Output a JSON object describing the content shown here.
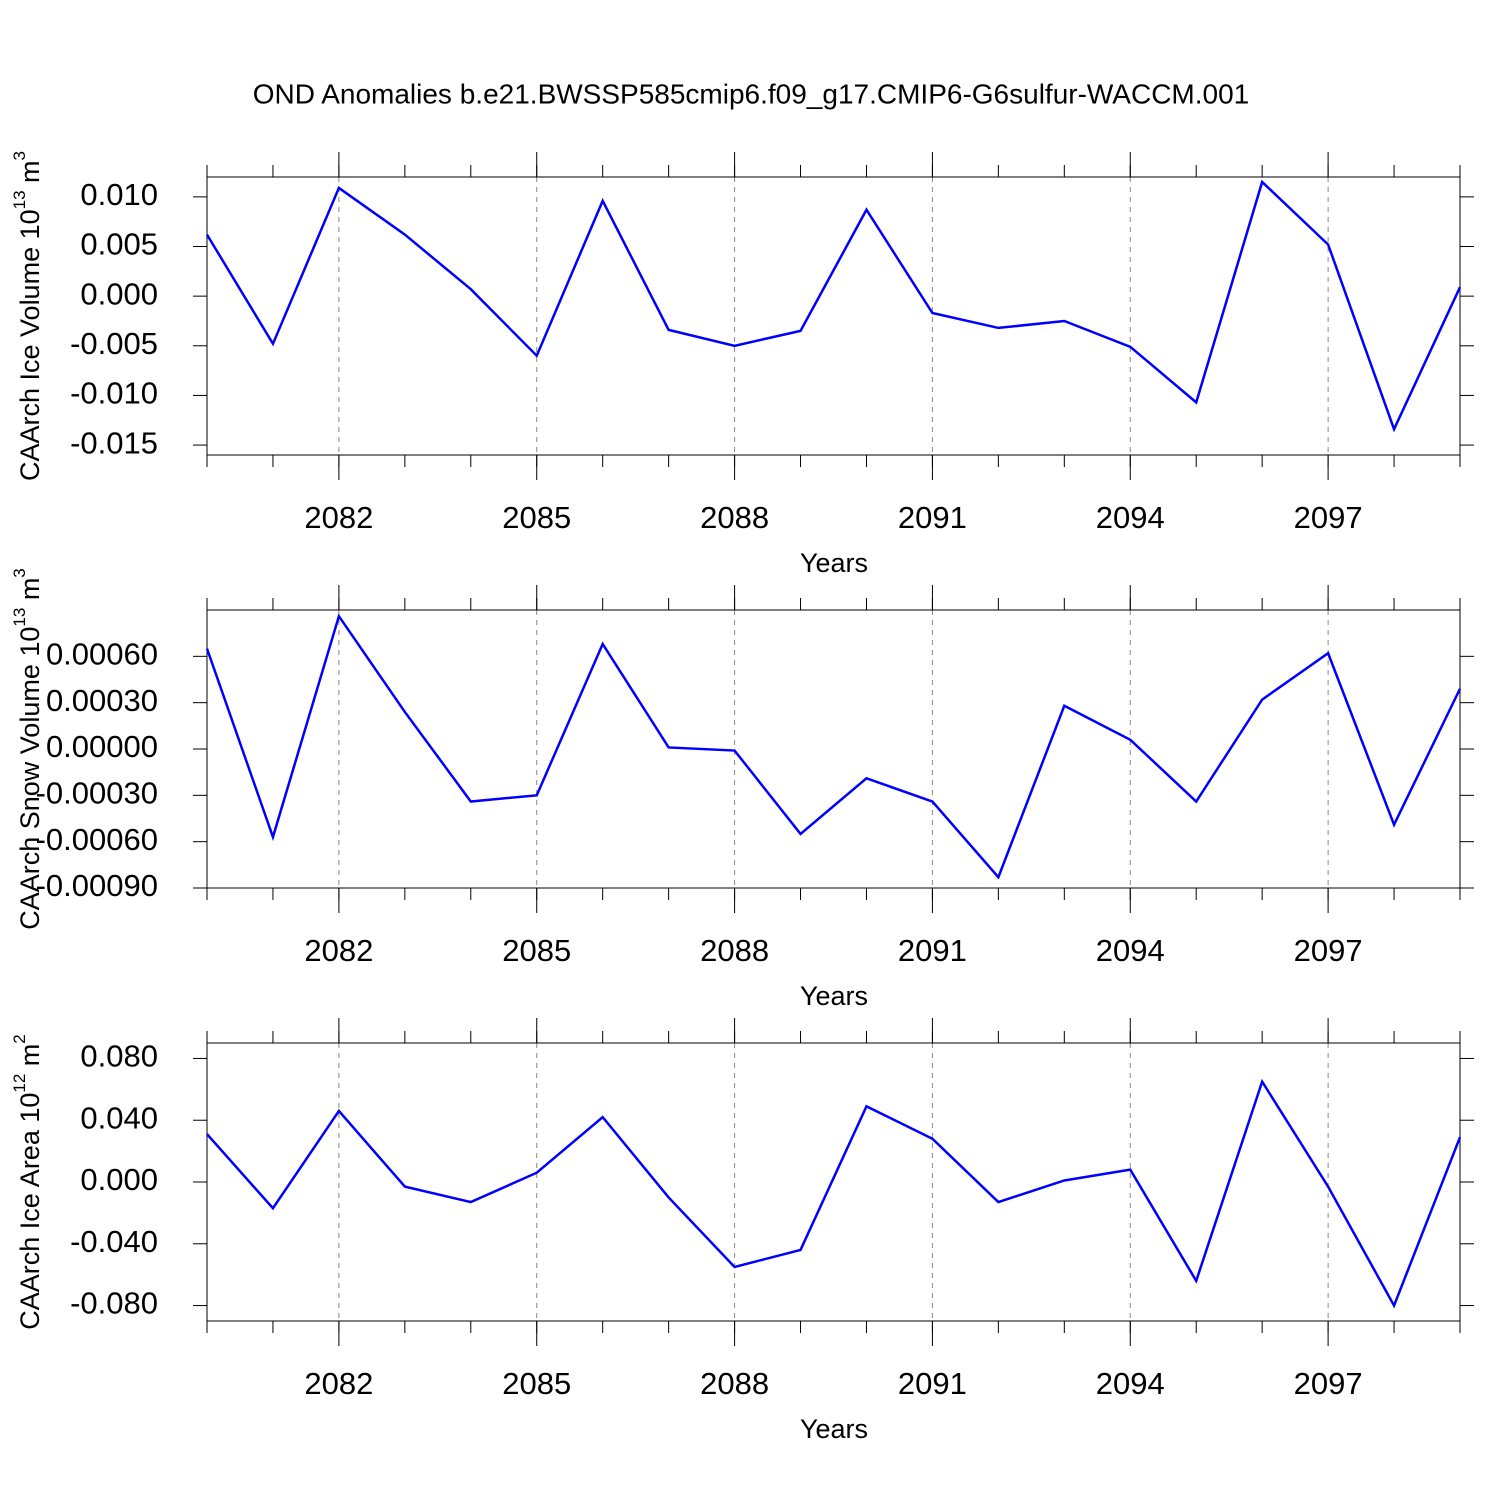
{
  "chart_data": [
    {
      "type": "line",
      "title": "OND Anomalies b.e21.BWSSP585cmip6.f09_g17.CMIP6-G6sulfur-WACCM.001",
      "xlabel": "Years",
      "ylabel_parts": [
        "CAArch Ice Volume 10",
        "13",
        " m",
        "3"
      ],
      "x": [
        2080,
        2081,
        2082,
        2083,
        2084,
        2085,
        2086,
        2087,
        2088,
        2089,
        2090,
        2091,
        2092,
        2093,
        2094,
        2095,
        2096,
        2097,
        2098,
        2099
      ],
      "xlim": [
        2080,
        2099
      ],
      "xticks": [
        2082,
        2085,
        2088,
        2091,
        2094,
        2097
      ],
      "xgrid": true,
      "ylim": [
        -0.016,
        0.012
      ],
      "yticks": [
        {
          "value": -0.015,
          "label": "-0.015"
        },
        {
          "value": -0.01,
          "label": "-0.010"
        },
        {
          "value": -0.005,
          "label": "-0.005"
        },
        {
          "value": 0,
          "label": "0.000"
        },
        {
          "value": 0.005,
          "label": "0.005"
        },
        {
          "value": 0.01,
          "label": "0.010"
        }
      ],
      "series": [
        {
          "color": "#0000ff",
          "values": [
            0.0062,
            -0.0048,
            0.0109,
            0.0062,
            0.0007,
            -0.006,
            0.0096,
            -0.0034,
            -0.005,
            -0.0035,
            0.0087,
            -0.0017,
            -0.0032,
            -0.0025,
            -0.0051,
            -0.0107,
            0.0115,
            0.0052,
            -0.0134,
            0.0009
          ]
        }
      ]
    },
    {
      "type": "line",
      "xlabel": "Years",
      "ylabel_parts": [
        "CAArch Snow Volume 10",
        "13",
        " m",
        "3"
      ],
      "x": [
        2080,
        2081,
        2082,
        2083,
        2084,
        2085,
        2086,
        2087,
        2088,
        2089,
        2090,
        2091,
        2092,
        2093,
        2094,
        2095,
        2096,
        2097,
        2098,
        2099
      ],
      "xlim": [
        2080,
        2099
      ],
      "xticks": [
        2082,
        2085,
        2088,
        2091,
        2094,
        2097
      ],
      "xgrid": true,
      "ylim": [
        -0.0009,
        0.0009
      ],
      "yticks": [
        {
          "value": -0.0009,
          "label": "-0.00090"
        },
        {
          "value": -0.0006,
          "label": "-0.00060"
        },
        {
          "value": -0.0003,
          "label": "-0.00030"
        },
        {
          "value": 0,
          "label": "0.00000"
        },
        {
          "value": 0.0003,
          "label": "0.00030"
        },
        {
          "value": 0.0006,
          "label": "0.00060"
        }
      ],
      "series": [
        {
          "color": "#0000ff",
          "values": [
            0.00065,
            -0.00057,
            0.00086,
            0.00024,
            -0.00034,
            -0.0003,
            0.00068,
            1e-05,
            -1e-05,
            -0.00055,
            -0.00019,
            -0.00034,
            -0.00083,
            0.00028,
            6e-05,
            -0.00034,
            0.00032,
            0.00062,
            -0.00049,
            0.00039
          ]
        }
      ]
    },
    {
      "type": "line",
      "xlabel": "Years",
      "ylabel_parts": [
        "CAArch Ice Area 10",
        "12",
        " m",
        "2"
      ],
      "x": [
        2080,
        2081,
        2082,
        2083,
        2084,
        2085,
        2086,
        2087,
        2088,
        2089,
        2090,
        2091,
        2092,
        2093,
        2094,
        2095,
        2096,
        2097,
        2098,
        2099
      ],
      "xlim": [
        2080,
        2099
      ],
      "xticks": [
        2082,
        2085,
        2088,
        2091,
        2094,
        2097
      ],
      "xgrid": true,
      "ylim": [
        -0.09,
        0.09
      ],
      "yticks": [
        {
          "value": -0.08,
          "label": "-0.080"
        },
        {
          "value": -0.04,
          "label": "-0.040"
        },
        {
          "value": 0,
          "label": "0.000"
        },
        {
          "value": 0.04,
          "label": "0.040"
        },
        {
          "value": 0.08,
          "label": "0.080"
        }
      ],
      "series": [
        {
          "color": "#0000ff",
          "values": [
            0.031,
            -0.017,
            0.046,
            -0.003,
            -0.013,
            0.006,
            0.042,
            -0.01,
            -0.055,
            -0.044,
            0.049,
            0.028,
            -0.013,
            0.001,
            0.008,
            -0.064,
            0.065,
            -0.003,
            -0.08,
            0.029
          ]
        }
      ]
    }
  ]
}
